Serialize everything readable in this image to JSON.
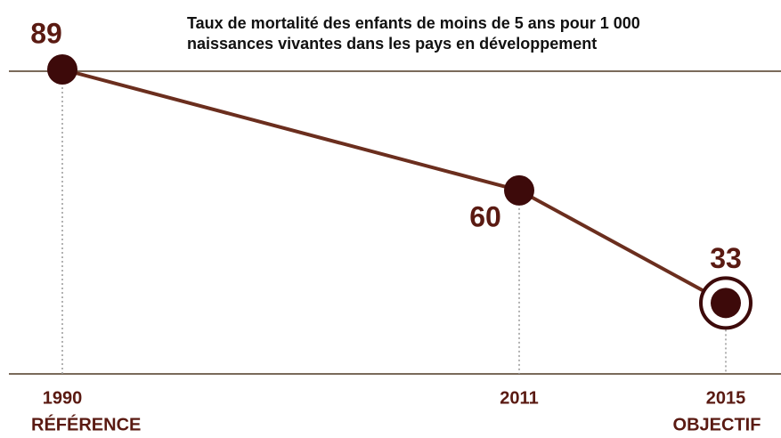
{
  "chart_data": {
    "type": "line",
    "title": [
      "Taux de mortalité des enfants de moins de 5 ans pour 1 000",
      "naissances vivantes dans les pays en développement"
    ],
    "categories": [
      "1990",
      "2011",
      "2015"
    ],
    "category_notes": [
      "RÉFÉRENCE",
      null,
      "OBJECTIF"
    ],
    "values": [
      89,
      60,
      33
    ],
    "color": "#6b2e1e",
    "marker_color": "#3d0a0a",
    "ylim": [
      16,
      89
    ]
  }
}
